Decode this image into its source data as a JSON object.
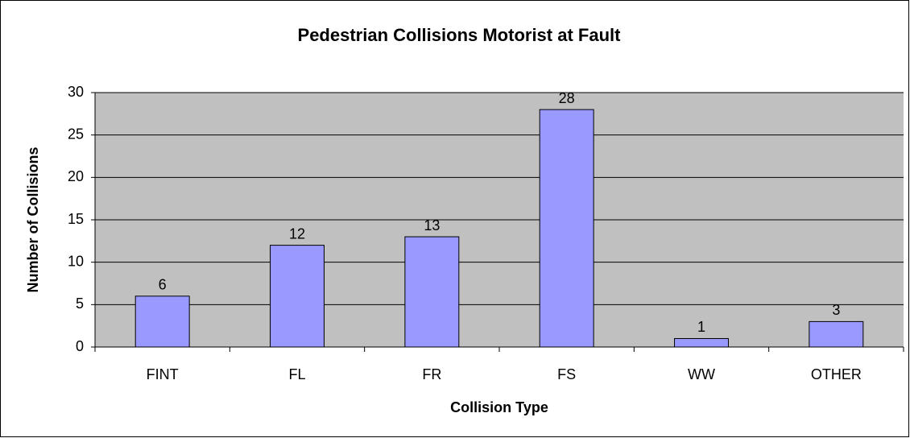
{
  "chart_data": {
    "type": "bar",
    "title": "Pedestrian Collisions Motorist at Fault",
    "x_label": "Collision Type",
    "y_label": "Number of Collisions",
    "categories": [
      "FINT",
      "FL",
      "FR",
      "FS",
      "WW",
      "OTHER"
    ],
    "values": [
      6,
      12,
      13,
      28,
      1,
      3
    ],
    "color": "#9999ff",
    "ylim": [
      0,
      30
    ],
    "yticks": [
      0,
      5,
      10,
      15,
      20,
      25,
      30
    ],
    "grid": true
  }
}
